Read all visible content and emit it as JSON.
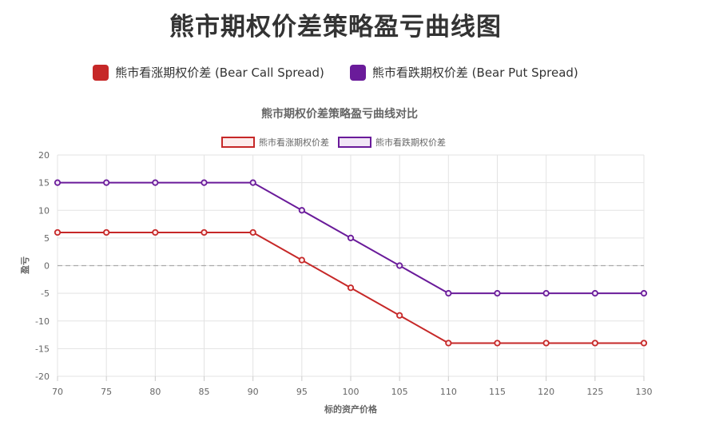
{
  "page": {
    "title": "熊市期权价差策略盈亏曲线图",
    "legend": [
      {
        "label": "熊市看涨期权价差 (Bear Call Spread)",
        "color": "#c62828"
      },
      {
        "label": "熊市看跌期权价差 (Bear Put Spread)",
        "color": "#6a1b9a"
      }
    ]
  },
  "chart_data": {
    "type": "line",
    "title": "熊市期权价差策略盈亏曲线对比",
    "xlabel": "标的资产价格",
    "ylabel": "盈亏",
    "x": [
      70,
      75,
      80,
      85,
      90,
      95,
      100,
      105,
      110,
      115,
      120,
      125,
      130
    ],
    "xlim": [
      70,
      130
    ],
    "ylim": [
      -20,
      20
    ],
    "yticks": [
      20,
      15,
      10,
      5,
      0,
      -5,
      -10,
      -15,
      -20
    ],
    "grid": true,
    "zero_line": true,
    "legend_position": "top",
    "series": [
      {
        "name": "熊市看涨期权价差",
        "color": "#c62828",
        "fill": "#fdecec",
        "values": [
          6,
          6,
          6,
          6,
          6,
          1,
          -4,
          -9,
          -14,
          -14,
          -14,
          -14,
          -14
        ]
      },
      {
        "name": "熊市看跌期权价差",
        "color": "#6a1b9a",
        "fill": "#f1e6f6",
        "values": [
          15,
          15,
          15,
          15,
          15,
          10,
          5,
          0,
          -5,
          -5,
          -5,
          -5,
          -5
        ]
      }
    ]
  }
}
